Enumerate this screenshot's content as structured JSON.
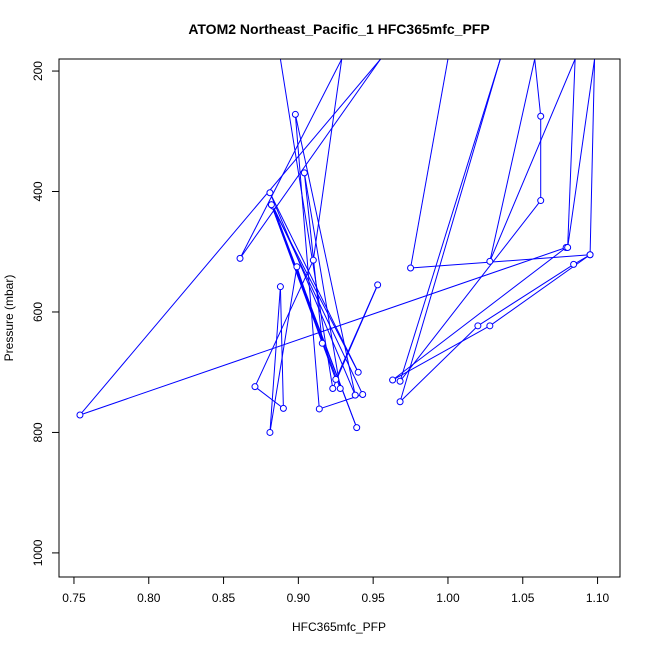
{
  "chart_data": {
    "type": "line",
    "title": "ATOM2 Northeast_Pacific_1 HFC365mfc_PFP",
    "xlabel": "HFC365mfc_PFP",
    "ylabel": "Pressure (mbar)",
    "xlim": [
      0.74,
      1.115
    ],
    "ylim": [
      1040,
      180
    ],
    "y_reversed": true,
    "xticks": [
      0.75,
      0.8,
      0.85,
      0.9,
      0.95,
      1.0,
      1.05,
      1.1
    ],
    "xtick_labels": [
      "0.75",
      "0.80",
      "0.85",
      "0.90",
      "0.95",
      "1.00",
      "1.05",
      "1.10"
    ],
    "yticks": [
      200,
      400,
      600,
      800,
      1000
    ],
    "ytick_labels": [
      "200",
      "400",
      "600",
      "800",
      "1000"
    ],
    "grid": false,
    "legend": false,
    "color": "#0000ff",
    "points": [
      {
        "x": 0.888,
        "y": 180,
        "marker": false
      },
      {
        "x": 0.923,
        "y": 727
      },
      {
        "x": 0.953,
        "y": 555
      },
      {
        "x": 0.925,
        "y": 712
      },
      {
        "x": 0.882,
        "y": 422
      },
      {
        "x": 0.94,
        "y": 700
      },
      {
        "x": 0.881,
        "y": 402
      },
      {
        "x": 0.938,
        "y": 738
      },
      {
        "x": 0.898,
        "y": 272
      },
      {
        "x": 0.914,
        "y": 761
      },
      {
        "x": 0.943,
        "y": 737
      },
      {
        "x": 0.883,
        "y": 424
      },
      {
        "x": 0.939,
        "y": 792
      },
      {
        "x": 0.882,
        "y": 422
      },
      {
        "x": 0.928,
        "y": 727
      },
      {
        "x": 0.904,
        "y": 369
      },
      {
        "x": 0.916,
        "y": 652
      },
      {
        "x": 0.899,
        "y": 525
      },
      {
        "x": 0.881,
        "y": 800
      },
      {
        "x": 0.888,
        "y": 558
      },
      {
        "x": 0.89,
        "y": 760
      },
      {
        "x": 0.871,
        "y": 724
      },
      {
        "x": 0.91,
        "y": 514
      },
      {
        "x": 0.929,
        "y": 180,
        "marker": false
      },
      {
        "x": 0.861,
        "y": 511
      },
      {
        "x": 0.955,
        "y": 180,
        "marker": false
      },
      {
        "x": 0.754,
        "y": 771
      },
      {
        "x": 1.079,
        "y": 493
      },
      {
        "x": 0.963,
        "y": 713
      },
      {
        "x": 1.028,
        "y": 623
      },
      {
        "x": 1.095,
        "y": 505
      },
      {
        "x": 1.084,
        "y": 521
      },
      {
        "x": 1.02,
        "y": 623
      },
      {
        "x": 0.968,
        "y": 749
      },
      {
        "x": 1.035,
        "y": 180,
        "marker": false
      },
      {
        "x": 0.968,
        "y": 715
      },
      {
        "x": 1.062,
        "y": 415
      },
      {
        "x": 1.062,
        "y": 275
      },
      {
        "x": 1.058,
        "y": 180,
        "marker": false
      },
      {
        "x": 1.028,
        "y": 516
      },
      {
        "x": 1.085,
        "y": 180,
        "marker": false
      },
      {
        "x": 1.08,
        "y": 493
      },
      {
        "x": 1.098,
        "y": 180,
        "marker": false
      },
      {
        "x": 1.095,
        "y": 505
      },
      {
        "x": 0.975,
        "y": 527
      },
      {
        "x": 1.0,
        "y": 180,
        "marker": false
      }
    ]
  }
}
